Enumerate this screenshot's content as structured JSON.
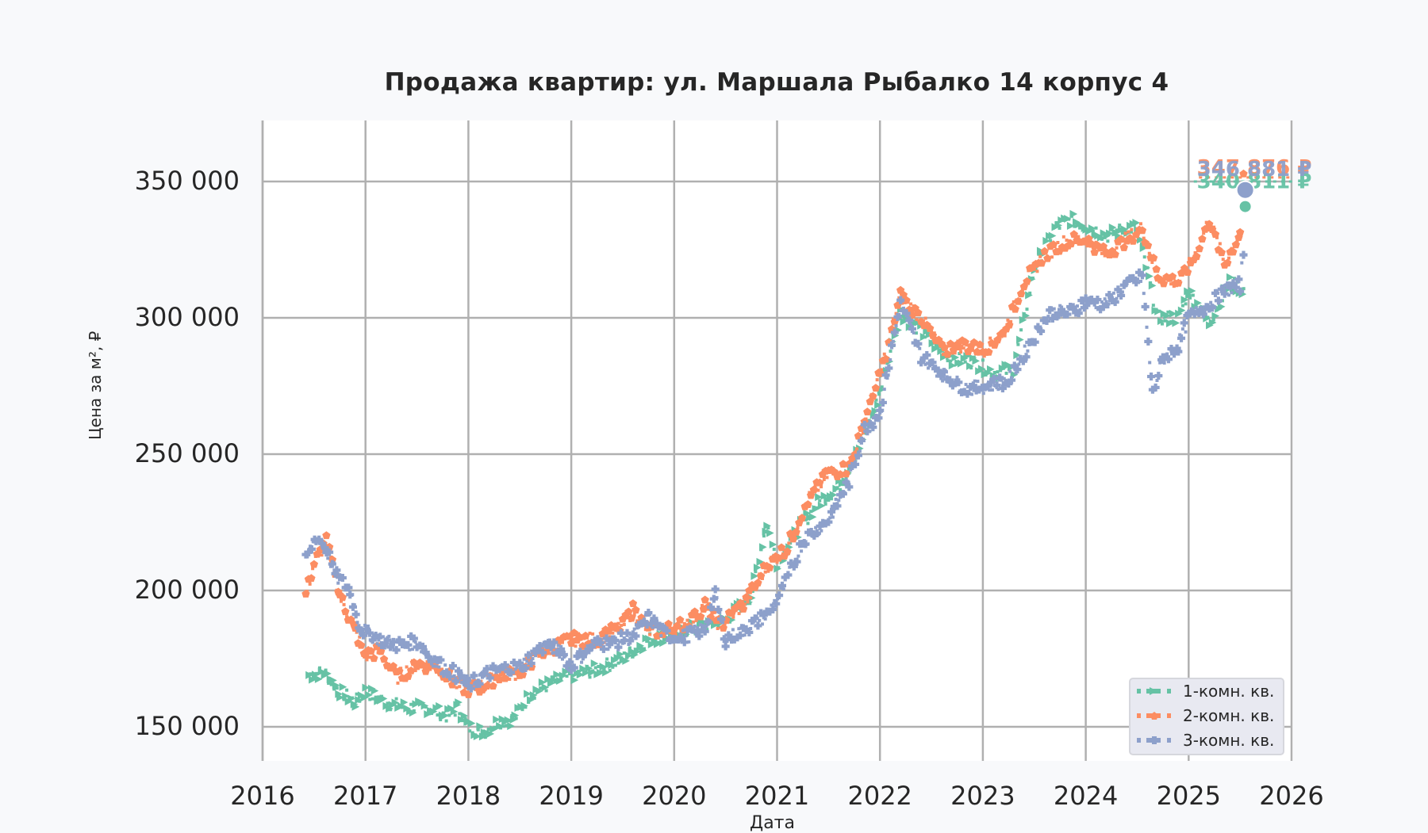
{
  "chart_data": {
    "type": "scatter",
    "title": "Продажа квартир: ул. Маршала Рыбалко 14 корпус 4",
    "xlabel": "Дата",
    "ylabel": "Цена за м², ₽",
    "xlim": [
      2016,
      2026
    ],
    "ylim": [
      137000,
      373000
    ],
    "x_ticks": [
      "2016",
      "2017",
      "2018",
      "2019",
      "2020",
      "2021",
      "2022",
      "2023",
      "2024",
      "2025",
      "2026"
    ],
    "y_ticks": [
      "150 000",
      "200 000",
      "250 000",
      "300 000",
      "350 000"
    ],
    "y_tick_values": [
      150000,
      200000,
      250000,
      300000,
      350000
    ],
    "grid": true,
    "legend_position": "lower right",
    "series": [
      {
        "name": "1-комн. кв.",
        "color": "#66c2a5",
        "marker": "triangle-right",
        "x": [
          2016.45,
          2016.6,
          2016.75,
          2016.9,
          2017.0,
          2017.2,
          2017.4,
          2017.6,
          2017.8,
          2017.9,
          2018.0,
          2018.15,
          2018.3,
          2018.45,
          2018.6,
          2018.8,
          2019.0,
          2019.25,
          2019.5,
          2019.75,
          2020.0,
          2020.25,
          2020.5,
          2020.75,
          2020.9,
          2021.0,
          2021.2,
          2021.4,
          2021.6,
          2021.8,
          2021.95,
          2022.2,
          2022.45,
          2022.7,
          2022.9,
          2023.1,
          2023.3,
          2023.5,
          2023.7,
          2023.85,
          2024.0,
          2024.2,
          2024.4,
          2024.5,
          2024.7,
          2024.9,
          2025.0,
          2025.2,
          2025.4,
          2025.55
        ],
        "values": [
          169000,
          170000,
          163000,
          159000,
          163000,
          159000,
          157000,
          157000,
          154000,
          157000,
          150000,
          148000,
          152000,
          153000,
          162000,
          166000,
          169000,
          171000,
          175000,
          182000,
          184000,
          187000,
          189000,
          198000,
          225000,
          210000,
          222000,
          232000,
          238000,
          252000,
          266000,
          302000,
          293000,
          285000,
          284000,
          280000,
          281000,
          318000,
          333000,
          336000,
          334000,
          330000,
          333000,
          333000,
          300000,
          300000,
          310000,
          298000,
          313000,
          310000
        ]
      },
      {
        "name": "2-комн. кв.",
        "color": "#fc8d62",
        "marker": "pentagon",
        "x": [
          2016.42,
          2016.5,
          2016.62,
          2016.75,
          2016.9,
          2017.0,
          2017.15,
          2017.3,
          2017.5,
          2017.7,
          2017.9,
          2018.0,
          2018.15,
          2018.3,
          2018.5,
          2018.7,
          2019.0,
          2019.25,
          2019.5,
          2019.6,
          2019.75,
          2020.0,
          2020.2,
          2020.3,
          2020.45,
          2020.7,
          2020.9,
          2021.1,
          2021.3,
          2021.5,
          2021.7,
          2021.85,
          2022.0,
          2022.2,
          2022.4,
          2022.6,
          2022.8,
          2023.0,
          2023.2,
          2023.4,
          2023.6,
          2023.8,
          2024.0,
          2024.2,
          2024.4,
          2024.55,
          2024.7,
          2024.9,
          2025.05,
          2025.2,
          2025.35,
          2025.5,
          2025.55
        ],
        "values": [
          198000,
          210000,
          218000,
          198000,
          185000,
          176000,
          178000,
          168000,
          173000,
          172000,
          165000,
          164000,
          165000,
          169000,
          170000,
          177000,
          182000,
          182000,
          187000,
          193000,
          185000,
          186000,
          190000,
          195000,
          187000,
          196000,
          209000,
          216000,
          233000,
          243000,
          245000,
          262000,
          279000,
          308000,
          300000,
          288000,
          290000,
          288000,
          294000,
          313000,
          323000,
          328000,
          329000,
          323000,
          329000,
          333000,
          315000,
          313000,
          322000,
          336000,
          320000,
          331000,
          360000
        ]
      },
      {
        "name": "3-комн. кв.",
        "color": "#8da0cb",
        "marker": "plus-filled",
        "x": [
          2016.42,
          2016.52,
          2016.62,
          2016.72,
          2016.85,
          2016.95,
          2017.1,
          2017.3,
          2017.5,
          2017.7,
          2017.85,
          2018.0,
          2018.15,
          2018.3,
          2018.5,
          2018.75,
          2018.9,
          2019.0,
          2019.2,
          2019.4,
          2019.6,
          2019.75,
          2019.9,
          2020.1,
          2020.3,
          2020.4,
          2020.5,
          2020.7,
          2020.9,
          2021.05,
          2021.25,
          2021.5,
          2021.7,
          2021.85,
          2022.0,
          2022.2,
          2022.4,
          2022.65,
          2022.85,
          2023.05,
          2023.25,
          2023.45,
          2023.65,
          2023.85,
          2024.0,
          2024.2,
          2024.4,
          2024.55,
          2024.65,
          2024.75,
          2024.9,
          2025.0,
          2025.2,
          2025.35,
          2025.5,
          2025.55
        ],
        "values": [
          211000,
          220000,
          215000,
          205000,
          200000,
          186000,
          183000,
          180000,
          181000,
          173000,
          170000,
          165000,
          169000,
          171000,
          172000,
          180000,
          178000,
          172000,
          180000,
          181000,
          183000,
          190000,
          184000,
          183000,
          186000,
          198000,
          182000,
          186000,
          191000,
          200000,
          218000,
          226000,
          240000,
          259000,
          265000,
          306000,
          286000,
          278000,
          274000,
          275000,
          277000,
          290000,
          302000,
          302000,
          306000,
          305000,
          312000,
          315000,
          272000,
          285000,
          290000,
          300000,
          305000,
          310000,
          312000,
          330000
        ]
      }
    ],
    "end_markers": [
      {
        "series": "3-комн. кв.",
        "x": 2025.55,
        "value": 346881,
        "label": "346 881 ₽",
        "color": "#8da0cb"
      },
      {
        "series": "1-комн. кв.",
        "x": 2025.55,
        "value": 340811,
        "label": "340 811 ₽",
        "color": "#66c2a5"
      },
      {
        "series": "2-комн. кв.",
        "x": 2025.55,
        "value": 347876,
        "label": "347 876 ₽",
        "color": "#fc8d62"
      }
    ],
    "annotations": [
      "346 881 ₽",
      "340 811 ₽",
      "347 876 ₽"
    ]
  },
  "legend": {
    "items": [
      {
        "label": "1-комн. кв.",
        "color": "#66c2a5"
      },
      {
        "label": "2-комн. кв.",
        "color": "#fc8d62"
      },
      {
        "label": "3-комн. кв.",
        "color": "#8da0cb"
      }
    ]
  }
}
